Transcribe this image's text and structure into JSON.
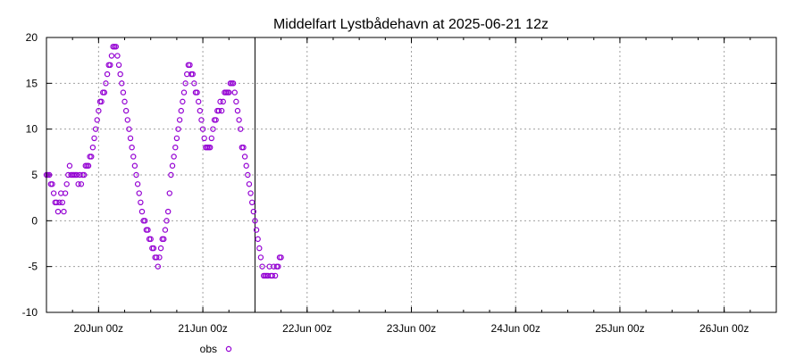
{
  "chart_data": {
    "type": "scatter",
    "title": "Middelfart Lystbådehavn at 2025-06-21 12z",
    "xlabel": "",
    "ylabel": "",
    "x_unit": "hours",
    "xlim": [
      "2025-06-19 12:00",
      "2025-06-26 12:00"
    ],
    "ylim": [
      -10,
      20
    ],
    "y_ticks": [
      -10,
      -5,
      0,
      5,
      10,
      15,
      20
    ],
    "x_ticks": [
      {
        "t": "2025-06-20 00:00",
        "label": "20Jun 00z"
      },
      {
        "t": "2025-06-21 00:00",
        "label": "21Jun 00z"
      },
      {
        "t": "2025-06-22 00:00",
        "label": "22Jun 00z"
      },
      {
        "t": "2025-06-23 00:00",
        "label": "23Jun 00z"
      },
      {
        "t": "2025-06-24 00:00",
        "label": "24Jun 00z"
      },
      {
        "t": "2025-06-25 00:00",
        "label": "25Jun 00z"
      },
      {
        "t": "2025-06-26 00:00",
        "label": "26Jun 00z"
      }
    ],
    "grid": true,
    "now_marker": "2025-06-21 12:00",
    "legend": {
      "placement": "bottom-left",
      "label": "obs"
    },
    "series": [
      {
        "name": "obs",
        "color": "#9400d3",
        "points": [
          [
            "2025-06-19 12:00",
            5
          ],
          [
            "2025-06-19 12:20",
            5
          ],
          [
            "2025-06-19 12:40",
            5
          ],
          [
            "2025-06-19 13:00",
            4
          ],
          [
            "2025-06-19 13:20",
            4
          ],
          [
            "2025-06-19 13:40",
            3
          ],
          [
            "2025-06-19 14:00",
            2
          ],
          [
            "2025-06-19 14:20",
            2
          ],
          [
            "2025-06-19 14:40",
            1
          ],
          [
            "2025-06-19 15:00",
            2
          ],
          [
            "2025-06-19 15:20",
            3
          ],
          [
            "2025-06-19 15:40",
            2
          ],
          [
            "2025-06-19 16:00",
            1
          ],
          [
            "2025-06-19 16:20",
            3
          ],
          [
            "2025-06-19 16:40",
            4
          ],
          [
            "2025-06-19 17:00",
            5
          ],
          [
            "2025-06-19 17:20",
            6
          ],
          [
            "2025-06-19 17:40",
            5
          ],
          [
            "2025-06-19 18:00",
            5
          ],
          [
            "2025-06-19 18:20",
            5
          ],
          [
            "2025-06-19 18:40",
            5
          ],
          [
            "2025-06-19 19:00",
            5
          ],
          [
            "2025-06-19 19:20",
            4
          ],
          [
            "2025-06-19 19:40",
            5
          ],
          [
            "2025-06-19 20:00",
            4
          ],
          [
            "2025-06-19 20:20",
            5
          ],
          [
            "2025-06-19 20:40",
            5
          ],
          [
            "2025-06-19 21:00",
            6
          ],
          [
            "2025-06-19 21:20",
            6
          ],
          [
            "2025-06-19 21:40",
            6
          ],
          [
            "2025-06-19 22:00",
            7
          ],
          [
            "2025-06-19 22:20",
            7
          ],
          [
            "2025-06-19 22:40",
            8
          ],
          [
            "2025-06-19 23:00",
            9
          ],
          [
            "2025-06-19 23:20",
            10
          ],
          [
            "2025-06-19 23:40",
            11
          ],
          [
            "2025-06-20 00:00",
            12
          ],
          [
            "2025-06-20 00:20",
            13
          ],
          [
            "2025-06-20 00:40",
            13
          ],
          [
            "2025-06-20 01:00",
            14
          ],
          [
            "2025-06-20 01:20",
            14
          ],
          [
            "2025-06-20 01:40",
            15
          ],
          [
            "2025-06-20 02:00",
            16
          ],
          [
            "2025-06-20 02:20",
            17
          ],
          [
            "2025-06-20 02:40",
            17
          ],
          [
            "2025-06-20 03:00",
            18
          ],
          [
            "2025-06-20 03:20",
            19
          ],
          [
            "2025-06-20 03:40",
            19
          ],
          [
            "2025-06-20 04:00",
            19
          ],
          [
            "2025-06-20 04:20",
            18
          ],
          [
            "2025-06-20 04:40",
            17
          ],
          [
            "2025-06-20 05:00",
            16
          ],
          [
            "2025-06-20 05:20",
            15
          ],
          [
            "2025-06-20 05:40",
            14
          ],
          [
            "2025-06-20 06:00",
            13
          ],
          [
            "2025-06-20 06:20",
            12
          ],
          [
            "2025-06-20 06:40",
            11
          ],
          [
            "2025-06-20 07:00",
            10
          ],
          [
            "2025-06-20 07:20",
            9
          ],
          [
            "2025-06-20 07:40",
            8
          ],
          [
            "2025-06-20 08:00",
            7
          ],
          [
            "2025-06-20 08:20",
            6
          ],
          [
            "2025-06-20 08:40",
            5
          ],
          [
            "2025-06-20 09:00",
            4
          ],
          [
            "2025-06-20 09:20",
            3
          ],
          [
            "2025-06-20 09:40",
            2
          ],
          [
            "2025-06-20 10:00",
            1
          ],
          [
            "2025-06-20 10:20",
            0
          ],
          [
            "2025-06-20 10:40",
            0
          ],
          [
            "2025-06-20 11:00",
            -1
          ],
          [
            "2025-06-20 11:20",
            -1
          ],
          [
            "2025-06-20 11:40",
            -2
          ],
          [
            "2025-06-20 12:00",
            -2
          ],
          [
            "2025-06-20 12:20",
            -3
          ],
          [
            "2025-06-20 12:40",
            -3
          ],
          [
            "2025-06-20 13:00",
            -4
          ],
          [
            "2025-06-20 13:20",
            -4
          ],
          [
            "2025-06-20 13:40",
            -5
          ],
          [
            "2025-06-20 14:00",
            -4
          ],
          [
            "2025-06-20 14:20",
            -3
          ],
          [
            "2025-06-20 14:40",
            -2
          ],
          [
            "2025-06-20 15:00",
            -2
          ],
          [
            "2025-06-20 15:20",
            -1
          ],
          [
            "2025-06-20 15:40",
            0
          ],
          [
            "2025-06-20 16:00",
            1
          ],
          [
            "2025-06-20 16:20",
            3
          ],
          [
            "2025-06-20 16:40",
            5
          ],
          [
            "2025-06-20 17:00",
            6
          ],
          [
            "2025-06-20 17:20",
            7
          ],
          [
            "2025-06-20 17:40",
            8
          ],
          [
            "2025-06-20 18:00",
            9
          ],
          [
            "2025-06-20 18:20",
            10
          ],
          [
            "2025-06-20 18:40",
            11
          ],
          [
            "2025-06-20 19:00",
            12
          ],
          [
            "2025-06-20 19:20",
            13
          ],
          [
            "2025-06-20 19:40",
            14
          ],
          [
            "2025-06-20 20:00",
            15
          ],
          [
            "2025-06-20 20:20",
            16
          ],
          [
            "2025-06-20 20:40",
            17
          ],
          [
            "2025-06-20 21:00",
            17
          ],
          [
            "2025-06-20 21:20",
            16
          ],
          [
            "2025-06-20 21:40",
            16
          ],
          [
            "2025-06-20 22:00",
            15
          ],
          [
            "2025-06-20 22:20",
            14
          ],
          [
            "2025-06-20 22:40",
            14
          ],
          [
            "2025-06-20 23:00",
            13
          ],
          [
            "2025-06-20 23:20",
            12
          ],
          [
            "2025-06-20 23:40",
            11
          ],
          [
            "2025-06-21 00:00",
            10
          ],
          [
            "2025-06-21 00:20",
            9
          ],
          [
            "2025-06-21 00:40",
            8
          ],
          [
            "2025-06-21 01:00",
            8
          ],
          [
            "2025-06-21 01:20",
            8
          ],
          [
            "2025-06-21 01:40",
            8
          ],
          [
            "2025-06-21 02:00",
            9
          ],
          [
            "2025-06-21 02:20",
            10
          ],
          [
            "2025-06-21 02:40",
            11
          ],
          [
            "2025-06-21 03:00",
            11
          ],
          [
            "2025-06-21 03:20",
            12
          ],
          [
            "2025-06-21 03:40",
            12
          ],
          [
            "2025-06-21 04:00",
            13
          ],
          [
            "2025-06-21 04:20",
            12
          ],
          [
            "2025-06-21 04:40",
            13
          ],
          [
            "2025-06-21 05:00",
            14
          ],
          [
            "2025-06-21 05:20",
            14
          ],
          [
            "2025-06-21 05:40",
            14
          ],
          [
            "2025-06-21 06:00",
            14
          ],
          [
            "2025-06-21 06:20",
            15
          ],
          [
            "2025-06-21 06:40",
            15
          ],
          [
            "2025-06-21 07:00",
            15
          ],
          [
            "2025-06-21 07:20",
            14
          ],
          [
            "2025-06-21 07:40",
            13
          ],
          [
            "2025-06-21 08:00",
            12
          ],
          [
            "2025-06-21 08:20",
            11
          ],
          [
            "2025-06-21 08:40",
            10
          ],
          [
            "2025-06-21 09:00",
            8
          ],
          [
            "2025-06-21 09:20",
            8
          ],
          [
            "2025-06-21 09:40",
            7
          ],
          [
            "2025-06-21 10:00",
            6
          ],
          [
            "2025-06-21 10:20",
            5
          ],
          [
            "2025-06-21 10:40",
            4
          ],
          [
            "2025-06-21 11:00",
            3
          ],
          [
            "2025-06-21 11:20",
            2
          ],
          [
            "2025-06-21 11:40",
            1
          ],
          [
            "2025-06-21 12:00",
            0
          ],
          [
            "2025-06-21 12:20",
            -1
          ],
          [
            "2025-06-21 12:40",
            -2
          ],
          [
            "2025-06-21 13:00",
            -3
          ],
          [
            "2025-06-21 13:20",
            -4
          ],
          [
            "2025-06-21 13:40",
            -5
          ],
          [
            "2025-06-21 14:00",
            -6
          ],
          [
            "2025-06-21 14:20",
            -6
          ],
          [
            "2025-06-21 14:40",
            -6
          ],
          [
            "2025-06-21 15:00",
            -6
          ],
          [
            "2025-06-21 15:20",
            -5
          ],
          [
            "2025-06-21 15:40",
            -6
          ],
          [
            "2025-06-21 16:00",
            -6
          ],
          [
            "2025-06-21 16:20",
            -5
          ],
          [
            "2025-06-21 16:40",
            -6
          ],
          [
            "2025-06-21 17:00",
            -5
          ],
          [
            "2025-06-21 17:20",
            -5
          ],
          [
            "2025-06-21 17:40",
            -4
          ],
          [
            "2025-06-21 18:00",
            -4
          ]
        ]
      }
    ]
  }
}
